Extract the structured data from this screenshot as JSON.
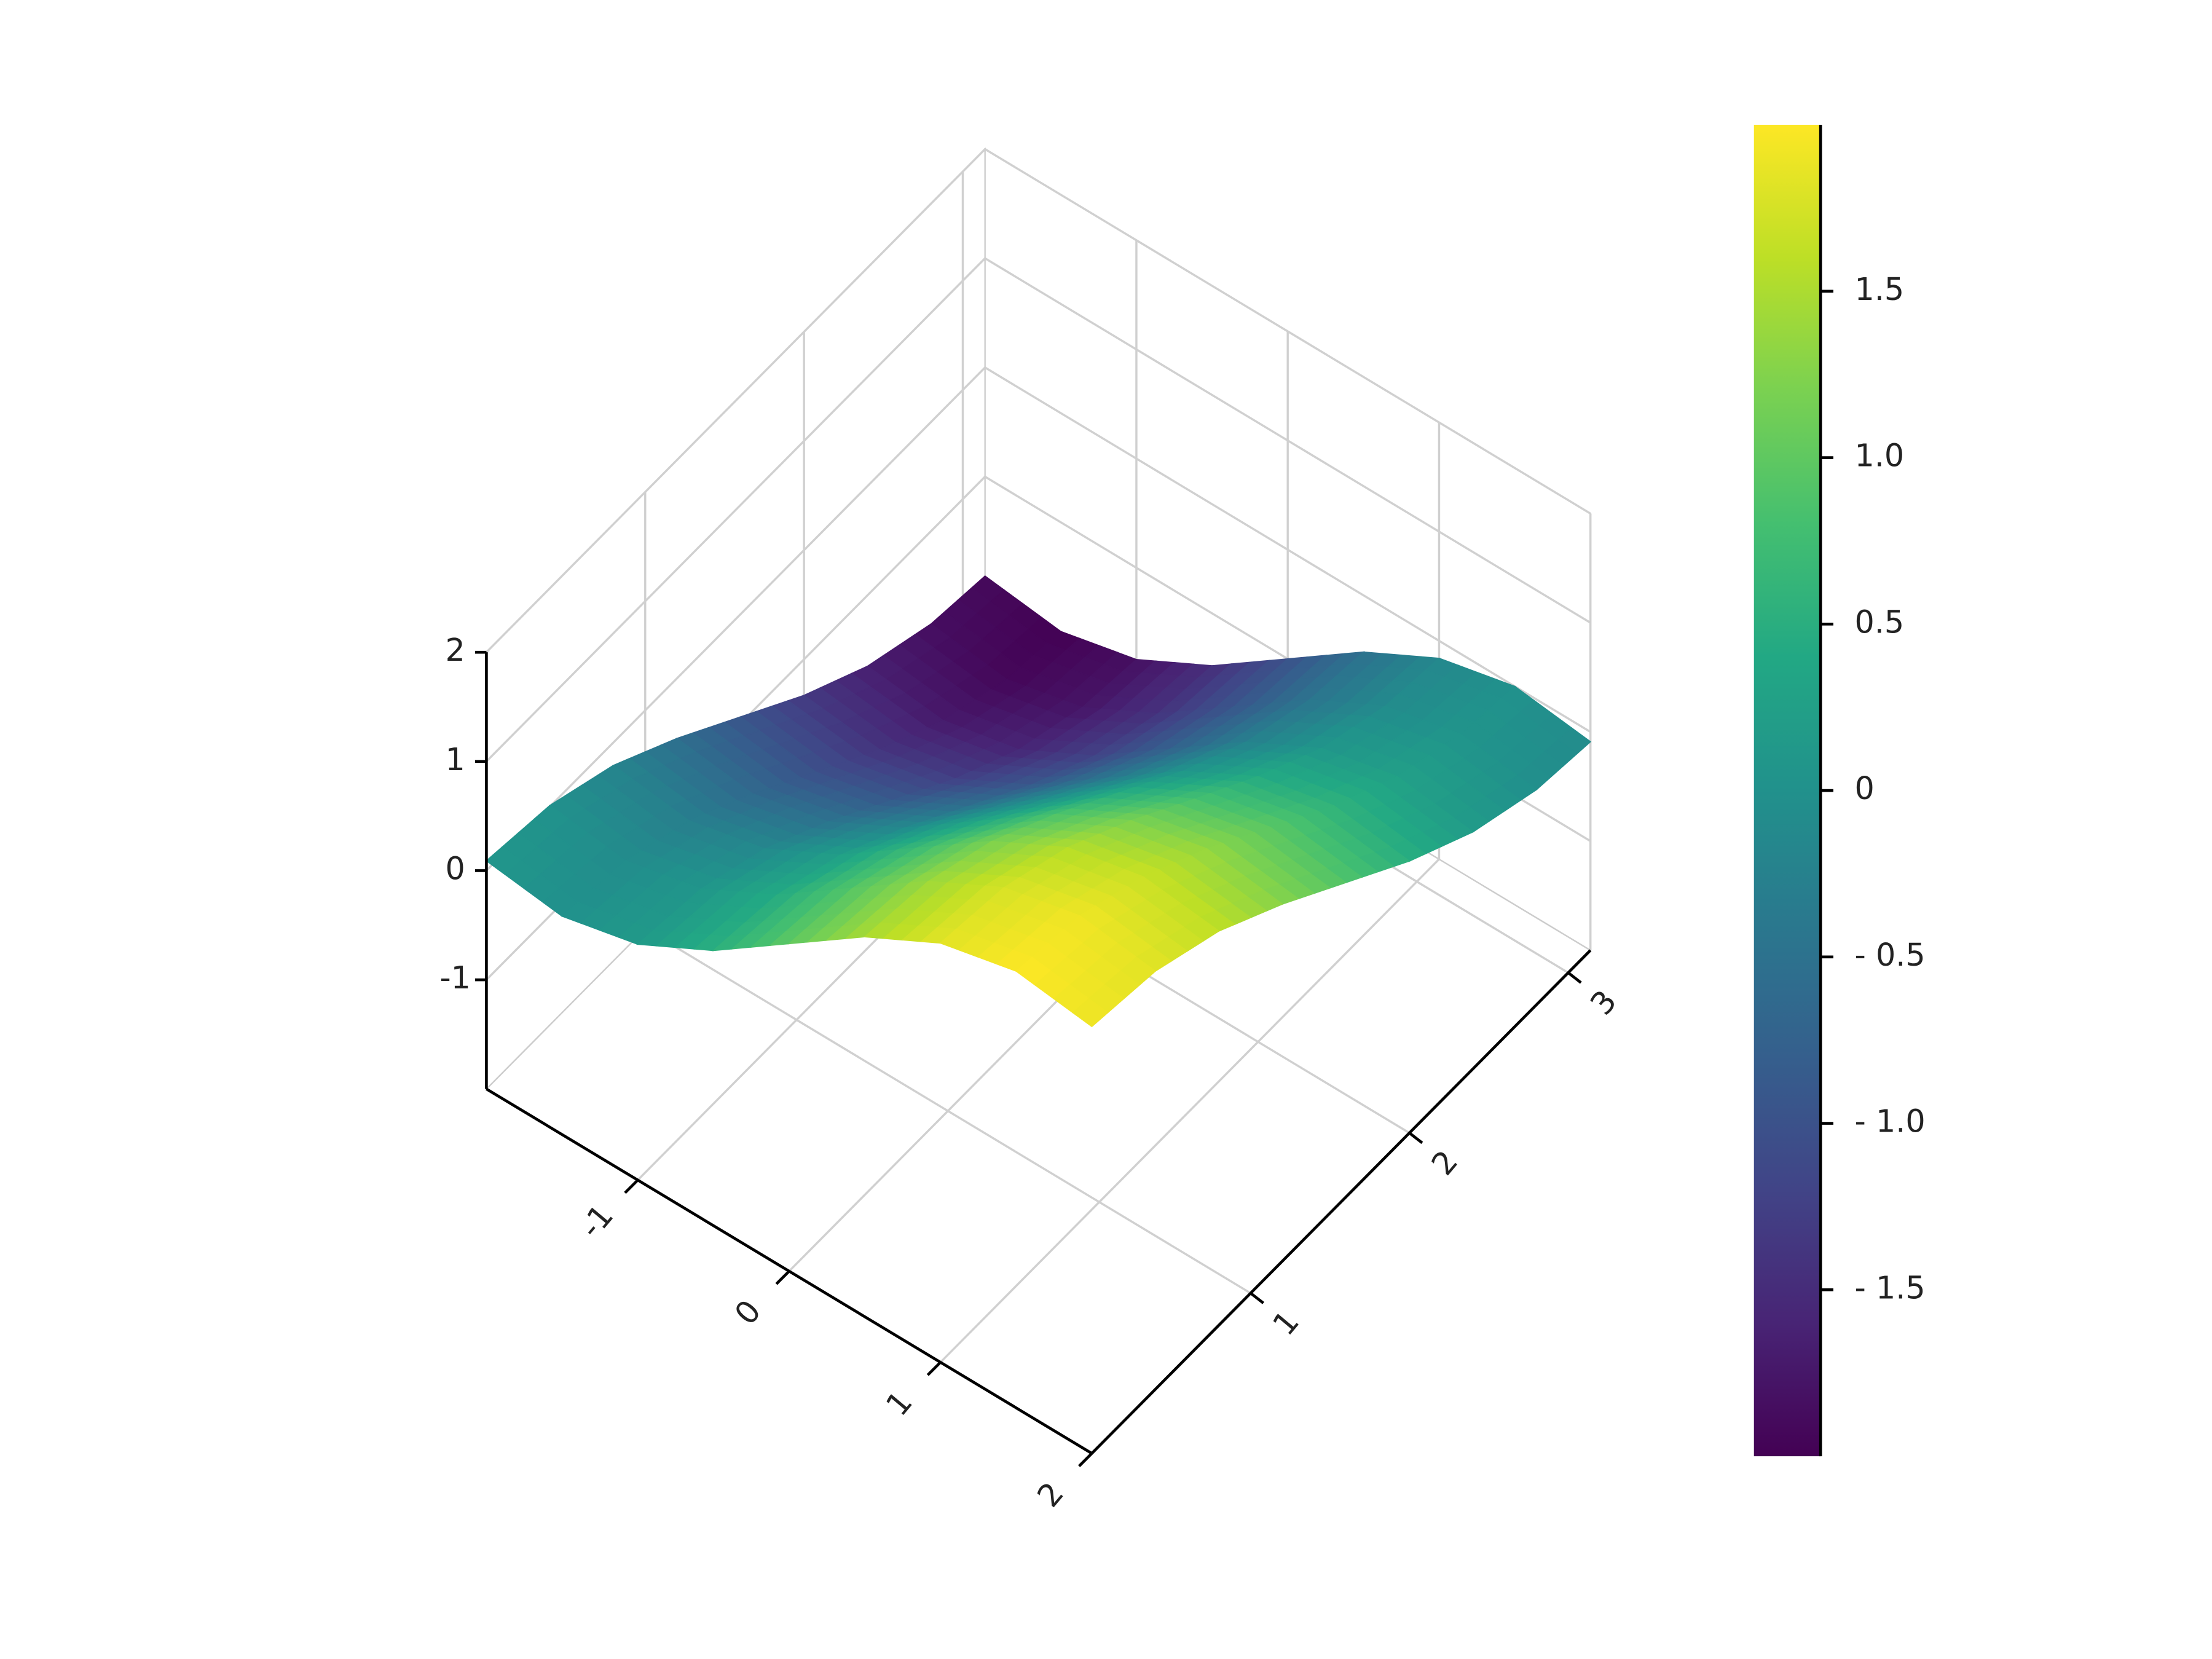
{
  "chart_data": {
    "type": "surface",
    "colormap": "viridis",
    "x": [
      -2,
      -1.5,
      -1,
      -0.5,
      0,
      0.5,
      1,
      1.5,
      2
    ],
    "y": [
      0,
      0.4,
      0.8,
      1.2,
      1.6,
      2,
      2.4,
      2.8,
      3.14
    ],
    "z": [
      [
        0.09,
        0.01,
        -0.21,
        -0.55,
        -0.94,
        -1.33,
        -1.65,
        -1.85,
        -1.91
      ],
      [
        0.0,
        -0.08,
        -0.3,
        -0.64,
        -1.03,
        -1.41,
        -1.73,
        -1.94,
        -2.0
      ],
      [
        0.16,
        0.08,
        -0.14,
        -0.48,
        -0.87,
        -1.26,
        -1.58,
        -1.78,
        -1.84
      ],
      [
        0.52,
        0.44,
        0.22,
        -0.12,
        -0.51,
        -0.9,
        -1.22,
        -1.42,
        -1.48
      ],
      [
        1.0,
        0.92,
        0.7,
        0.36,
        -0.03,
        -0.42,
        -0.74,
        -0.94,
        -1.0
      ],
      [
        1.48,
        1.4,
        1.18,
        0.84,
        0.45,
        0.06,
        -0.26,
        -0.46,
        -0.52
      ],
      [
        1.84,
        1.76,
        1.54,
        1.2,
        0.81,
        0.43,
        0.1,
        -0.1,
        -0.16
      ],
      [
        2.0,
        1.92,
        1.69,
        1.36,
        0.97,
        0.58,
        0.26,
        0.06,
        0.0
      ],
      [
        1.91,
        1.83,
        1.61,
        1.27,
        0.88,
        0.49,
        0.17,
        -0.03,
        -0.09
      ]
    ],
    "xlim": [
      -2,
      2
    ],
    "ylim": [
      0,
      3.14
    ],
    "zlim": [
      -2,
      2
    ],
    "xticks": [
      -1,
      0,
      1,
      2
    ],
    "yticks": [
      1,
      2,
      3
    ],
    "zticks": [
      -1,
      0,
      1,
      2
    ],
    "grid": true,
    "colorbar": {
      "lim": [
        -2,
        2
      ],
      "ticks": [
        {
          "value": -1.5,
          "label": "- 1.5"
        },
        {
          "value": -1.0,
          "label": "- 1.0"
        },
        {
          "value": -0.5,
          "label": "- 0.5"
        },
        0,
        0.5,
        {
          "value": 1.0,
          "label": "1.0"
        },
        1.5
      ]
    }
  }
}
